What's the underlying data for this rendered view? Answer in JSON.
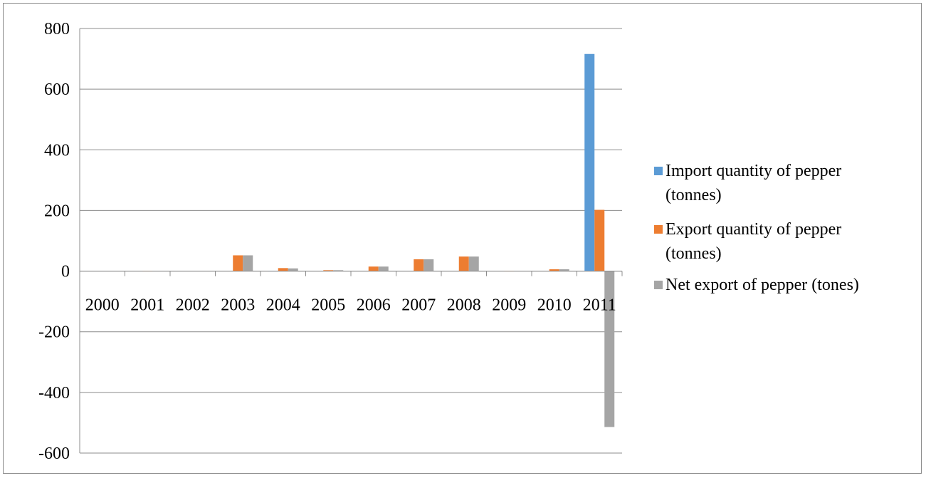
{
  "chart_data": {
    "type": "bar",
    "title": "",
    "xlabel": "",
    "ylabel": "",
    "categories": [
      "2000",
      "2001",
      "2002",
      "2003",
      "2004",
      "2005",
      "2006",
      "2007",
      "2008",
      "2009",
      "2010",
      "2011"
    ],
    "series": [
      {
        "name": "Import quantity of pepper (tonnes)",
        "color": "#5b9bd5",
        "values": [
          0,
          0,
          0,
          0,
          1,
          0,
          0,
          0,
          0,
          0,
          0,
          716
        ]
      },
      {
        "name": "Export quantity of pepper (tonnes)",
        "color": "#ed7d31",
        "values": [
          0,
          1,
          0,
          52,
          10,
          3,
          15,
          39,
          48,
          1,
          6,
          202
        ]
      },
      {
        "name": "Net export of pepper (tones)",
        "color": "#a5a5a5",
        "values": [
          0,
          1,
          0,
          52,
          9,
          3,
          15,
          39,
          48,
          1,
          6,
          -514
        ]
      }
    ],
    "ylim": [
      -600,
      800
    ],
    "yticks": [
      800,
      600,
      400,
      200,
      0,
      -200,
      -400,
      -600
    ],
    "grid": true,
    "legend_position": "right"
  }
}
